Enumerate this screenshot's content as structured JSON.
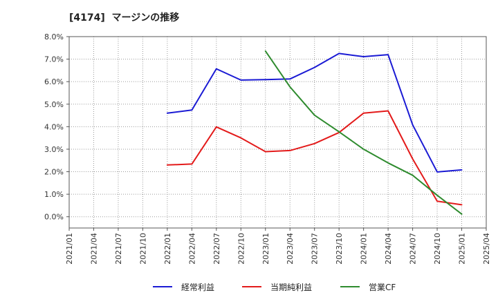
{
  "chart_data": {
    "type": "line",
    "title": "[4174]  マージンの推移",
    "xlabel": "",
    "ylabel": "",
    "grid": true,
    "legend_position": "bottom",
    "ylim": [
      -0.5,
      8.0
    ],
    "y_ticks": [
      0,
      1,
      2,
      3,
      4,
      5,
      6,
      7,
      8
    ],
    "y_tick_labels": [
      "0.0%",
      "1.0%",
      "2.0%",
      "3.0%",
      "4.0%",
      "5.0%",
      "6.0%",
      "7.0%",
      "8.0%"
    ],
    "categories": [
      "2021/01",
      "2021/04",
      "2021/07",
      "2021/10",
      "2022/01",
      "2022/04",
      "2022/07",
      "2022/10",
      "2023/01",
      "2023/04",
      "2023/07",
      "2023/10",
      "2024/01",
      "2024/04",
      "2024/07",
      "2024/10",
      "2025/01",
      "2025/04"
    ],
    "series": [
      {
        "name": "経常利益",
        "color": "#1a1ad4",
        "values": [
          null,
          null,
          null,
          null,
          4.6,
          4.74,
          6.57,
          6.07,
          6.09,
          6.12,
          6.63,
          7.25,
          7.11,
          7.2,
          4.08,
          1.99,
          2.08,
          null
        ]
      },
      {
        "name": "当期純利益",
        "color": "#e31a1a",
        "values": [
          null,
          null,
          null,
          null,
          2.3,
          2.34,
          3.99,
          3.5,
          2.89,
          2.94,
          3.25,
          3.74,
          4.6,
          4.7,
          2.57,
          0.69,
          0.53,
          null
        ]
      },
      {
        "name": "営業CF",
        "color": "#2e8b2e",
        "values": [
          null,
          null,
          null,
          null,
          null,
          null,
          null,
          null,
          7.36,
          5.77,
          4.51,
          3.77,
          3.0,
          2.39,
          1.84,
          0.95,
          0.12,
          null
        ]
      }
    ]
  }
}
